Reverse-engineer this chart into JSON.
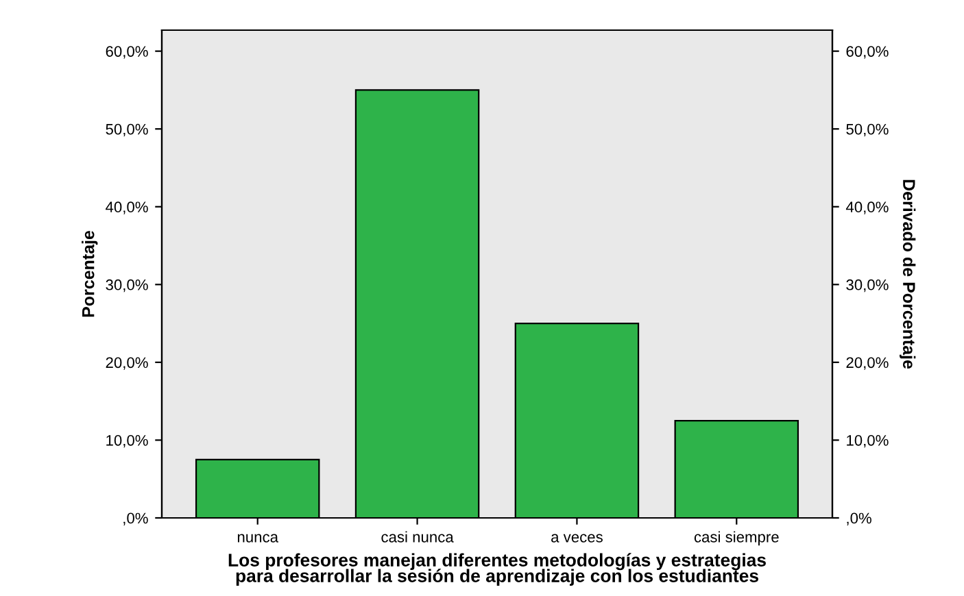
{
  "chart_data": {
    "type": "bar",
    "xlabel": "Los profesores manejan diferentes metodologías y estrategias\npara desarrollar la sesión de aprendizaje con los estudiantes",
    "ylabel": "Porcentaje",
    "y2label": "Derivado de Porcentaje",
    "categories": [
      "nunca",
      "casi nunca",
      "a veces",
      "casi siempre"
    ],
    "values": [
      7.5,
      55.0,
      25.0,
      12.5
    ],
    "color": "#2eb34a",
    "ylim": [
      0,
      62.7
    ],
    "yticks": [
      {
        "value": 0,
        "label": ",0%"
      },
      {
        "value": 10,
        "label": "10,0%"
      },
      {
        "value": 20,
        "label": "20,0%"
      },
      {
        "value": 30,
        "label": "30,0%"
      },
      {
        "value": 40,
        "label": "40,0%"
      },
      {
        "value": 50,
        "label": "50,0%"
      },
      {
        "value": 60,
        "label": "60,0%"
      }
    ],
    "y2lim": [
      0,
      62.7
    ],
    "y2ticks": [
      {
        "value": 0,
        "label": ",0%"
      },
      {
        "value": 10,
        "label": "10,0%"
      },
      {
        "value": 20,
        "label": "20,0%"
      },
      {
        "value": 30,
        "label": "30,0%"
      },
      {
        "value": 40,
        "label": "40,0%"
      },
      {
        "value": 50,
        "label": "50,0%"
      },
      {
        "value": 60,
        "label": "60,0%"
      }
    ],
    "grid": false
  }
}
